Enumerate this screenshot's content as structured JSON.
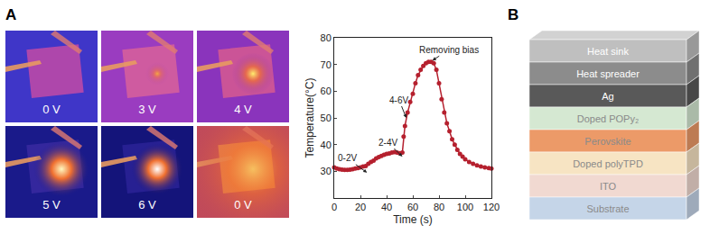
{
  "panel_labels": [
    "A",
    "B"
  ],
  "thermal_images": {
    "labels": [
      "0 V",
      "3 V",
      "4 V",
      "5 V",
      "6 V",
      "0 V"
    ]
  },
  "chart_data": {
    "type": "line",
    "x_label": "Time (s)",
    "y_label": "Temperature(°C)",
    "series": [
      {
        "color": "#b5202e",
        "marker": "circle",
        "line_style": "solid",
        "x": [
          0,
          2,
          4,
          6,
          8,
          10,
          12,
          14,
          16,
          18,
          20,
          22,
          24,
          26,
          28,
          30,
          32,
          34,
          36,
          38,
          40,
          42,
          44,
          46,
          48,
          50,
          52,
          53,
          54,
          56,
          58,
          60,
          62,
          64,
          66,
          68,
          70,
          72,
          74,
          76,
          78,
          80,
          82,
          84,
          86,
          88,
          90,
          92,
          94,
          96,
          98,
          100,
          103,
          106,
          109,
          112,
          115,
          118,
          120
        ],
        "values": [
          31.5,
          31,
          30.8,
          30.6,
          30.5,
          30.5,
          30.6,
          30.8,
          31,
          31.2,
          31.5,
          31.8,
          32,
          32.8,
          33.5,
          34,
          34.8,
          35.3,
          35.8,
          36.2,
          36.5,
          36.7,
          37,
          37.2,
          37,
          36.8,
          37,
          43,
          47,
          52,
          56,
          59,
          63,
          66,
          68,
          69.5,
          70.5,
          71,
          71,
          70.5,
          68,
          63,
          57,
          52,
          48,
          45,
          42,
          40,
          38,
          36.5,
          35.5,
          34.5,
          33.5,
          32.8,
          32.2,
          31.8,
          31.5,
          31.2,
          31
        ]
      }
    ],
    "xlim": [
      0,
      120
    ],
    "xticks": [
      0,
      20,
      40,
      60,
      80,
      100,
      120
    ],
    "ylim": [
      20,
      80
    ],
    "yticks": [
      30,
      40,
      50,
      60,
      70,
      80
    ],
    "grid": false,
    "annotations": [
      {
        "text": "0-2V",
        "x": 25,
        "y": 29.5
      },
      {
        "text": "2-4V",
        "x": 52,
        "y": 35.5
      },
      {
        "text": "4-6V",
        "x": 55,
        "y": 50
      },
      {
        "text": "Removing bias",
        "x": 75,
        "y": 71.5
      }
    ]
  },
  "layer_stack": {
    "layers": [
      {
        "label": "Heat sink",
        "color": "#bfbfbf"
      },
      {
        "label": "Heat spreader",
        "color": "#8c8c8c"
      },
      {
        "label": "Ag",
        "color": "#595959"
      },
      {
        "label": "Doped POPy₂",
        "color": "#d5e8d2"
      },
      {
        "label": "Perovskite",
        "color": "#ec9a68"
      },
      {
        "label": "Doped polyTPD",
        "color": "#f7e4c3"
      },
      {
        "label": "ITO",
        "color": "#f1d9d1"
      },
      {
        "label": "Substrate",
        "color": "#c5d5e8"
      }
    ]
  }
}
